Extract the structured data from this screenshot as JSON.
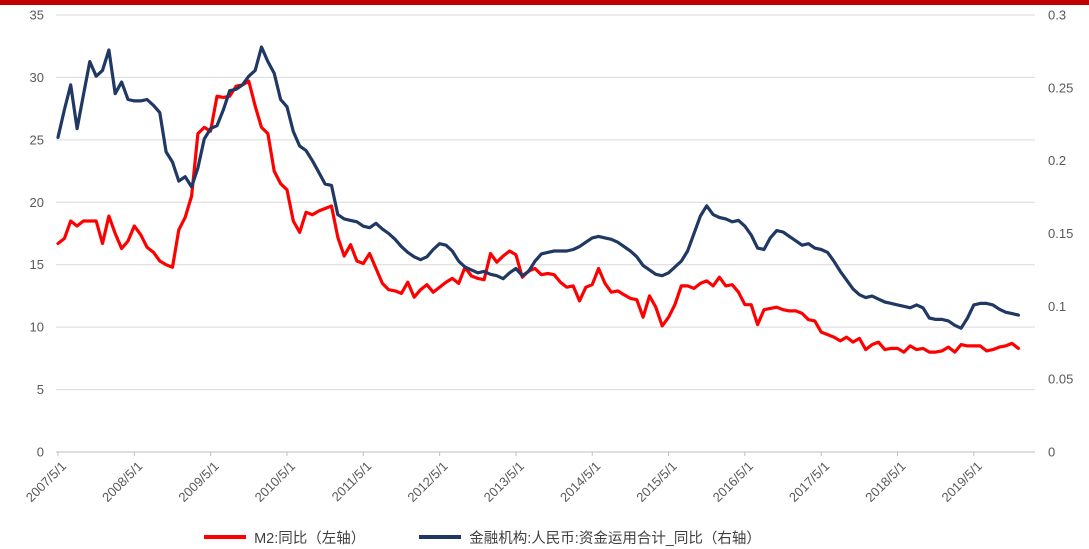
{
  "page": {
    "top_bar_color": "#C00000",
    "background_color": "#FFFFFF"
  },
  "chart_data": {
    "type": "line",
    "x_frequency": "monthly",
    "x_start": "2007/5",
    "x_end": "2019/12",
    "x_months": [
      "2007/5",
      "2007/6",
      "2007/7",
      "2007/8",
      "2007/9",
      "2007/10",
      "2007/11",
      "2007/12",
      "2008/1",
      "2008/2",
      "2008/3",
      "2008/4",
      "2008/5",
      "2008/6",
      "2008/7",
      "2008/8",
      "2008/9",
      "2008/10",
      "2008/11",
      "2008/12",
      "2009/1",
      "2009/2",
      "2009/3",
      "2009/4",
      "2009/5",
      "2009/6",
      "2009/7",
      "2009/8",
      "2009/9",
      "2009/10",
      "2009/11",
      "2009/12",
      "2010/1",
      "2010/2",
      "2010/3",
      "2010/4",
      "2010/5",
      "2010/6",
      "2010/7",
      "2010/8",
      "2010/9",
      "2010/10",
      "2010/11",
      "2010/12",
      "2011/1",
      "2011/2",
      "2011/3",
      "2011/4",
      "2011/5",
      "2011/6",
      "2011/7",
      "2011/8",
      "2011/9",
      "2011/10",
      "2011/11",
      "2011/12",
      "2012/1",
      "2012/2",
      "2012/3",
      "2012/4",
      "2012/5",
      "2012/6",
      "2012/7",
      "2012/8",
      "2012/9",
      "2012/10",
      "2012/11",
      "2012/12",
      "2013/1",
      "2013/2",
      "2013/3",
      "2013/4",
      "2013/5",
      "2013/6",
      "2013/7",
      "2013/8",
      "2013/9",
      "2013/10",
      "2013/11",
      "2013/12",
      "2014/1",
      "2014/2",
      "2014/3",
      "2014/4",
      "2014/5",
      "2014/6",
      "2014/7",
      "2014/8",
      "2014/9",
      "2014/10",
      "2014/11",
      "2014/12",
      "2015/1",
      "2015/2",
      "2015/3",
      "2015/4",
      "2015/5",
      "2015/6",
      "2015/7",
      "2015/8",
      "2015/9",
      "2015/10",
      "2015/11",
      "2015/12",
      "2016/1",
      "2016/2",
      "2016/3",
      "2016/4",
      "2016/5",
      "2016/6",
      "2016/7",
      "2016/8",
      "2016/9",
      "2016/10",
      "2016/11",
      "2016/12",
      "2017/1",
      "2017/2",
      "2017/3",
      "2017/4",
      "2017/5",
      "2017/6",
      "2017/7",
      "2017/8",
      "2017/9",
      "2017/10",
      "2017/11",
      "2017/12",
      "2018/1",
      "2018/2",
      "2018/3",
      "2018/4",
      "2018/5",
      "2018/6",
      "2018/7",
      "2018/8",
      "2018/9",
      "2018/10",
      "2018/11",
      "2018/12",
      "2019/1",
      "2019/2",
      "2019/3",
      "2019/4",
      "2019/5",
      "2019/6",
      "2019/7",
      "2019/8",
      "2019/9",
      "2019/10",
      "2019/11",
      "2019/12"
    ],
    "x_tick_labels": [
      "2007/5/1",
      "2008/5/1",
      "2009/5/1",
      "2010/5/1",
      "2011/5/1",
      "2012/5/1",
      "2013/5/1",
      "2014/5/1",
      "2015/5/1",
      "2016/5/1",
      "2017/5/1",
      "2018/5/1",
      "2019/5/1"
    ],
    "series": [
      {
        "name": "M2:同比（左轴）",
        "axis": "left",
        "color": "#FF0000",
        "values": [
          16.7,
          17.1,
          18.5,
          18.1,
          18.5,
          18.5,
          18.5,
          16.7,
          18.9,
          17.5,
          16.3,
          16.9,
          18.1,
          17.4,
          16.4,
          16.0,
          15.3,
          15.0,
          14.8,
          17.8,
          18.8,
          20.5,
          25.5,
          26.0,
          25.7,
          28.5,
          28.4,
          28.5,
          29.3,
          29.4,
          29.7,
          27.7,
          26.0,
          25.5,
          22.5,
          21.5,
          21.0,
          18.5,
          17.6,
          19.2,
          19.0,
          19.3,
          19.5,
          19.7,
          17.2,
          15.7,
          16.6,
          15.3,
          15.1,
          15.9,
          14.7,
          13.5,
          13.0,
          12.9,
          12.7,
          13.6,
          12.4,
          13.0,
          13.4,
          12.8,
          13.2,
          13.6,
          13.9,
          13.5,
          14.8,
          14.1,
          13.9,
          13.8,
          15.9,
          15.2,
          15.7,
          16.1,
          15.8,
          14.0,
          14.5,
          14.7,
          14.2,
          14.3,
          14.2,
          13.6,
          13.2,
          13.3,
          12.1,
          13.2,
          13.4,
          14.7,
          13.5,
          12.8,
          12.9,
          12.6,
          12.3,
          12.2,
          10.8,
          12.5,
          11.6,
          10.1,
          10.8,
          11.8,
          13.3,
          13.3,
          13.1,
          13.5,
          13.7,
          13.3,
          14.0,
          13.3,
          13.4,
          12.8,
          11.8,
          11.8,
          10.2,
          11.4,
          11.5,
          11.6,
          11.4,
          11.3,
          11.3,
          11.1,
          10.6,
          10.5,
          9.6,
          9.4,
          9.2,
          8.9,
          9.2,
          8.8,
          9.1,
          8.2,
          8.6,
          8.8,
          8.2,
          8.3,
          8.3,
          8.0,
          8.5,
          8.2,
          8.3,
          8.0,
          8.0,
          8.1,
          8.4,
          8.0,
          8.6,
          8.5,
          8.5,
          8.5,
          8.1,
          8.2,
          8.4,
          8.5,
          8.7,
          8.3
        ]
      },
      {
        "name": "金融机构:人民币:资金运用合计_同比（右轴）",
        "axis": "right",
        "color": "#1F3864",
        "values": [
          0.216,
          0.235,
          0.252,
          0.222,
          0.245,
          0.268,
          0.258,
          0.262,
          0.276,
          0.246,
          0.254,
          0.242,
          0.241,
          0.241,
          0.242,
          0.238,
          0.233,
          0.206,
          0.199,
          0.186,
          0.189,
          0.182,
          0.195,
          0.215,
          0.222,
          0.224,
          0.235,
          0.248,
          0.249,
          0.252,
          0.258,
          0.262,
          0.278,
          0.268,
          0.26,
          0.242,
          0.237,
          0.22,
          0.21,
          0.207,
          0.2,
          0.192,
          0.184,
          0.183,
          0.163,
          0.16,
          0.159,
          0.158,
          0.155,
          0.154,
          0.157,
          0.153,
          0.15,
          0.146,
          0.141,
          0.137,
          0.134,
          0.132,
          0.134,
          0.139,
          0.143,
          0.142,
          0.138,
          0.131,
          0.127,
          0.125,
          0.123,
          0.124,
          0.122,
          0.121,
          0.119,
          0.123,
          0.126,
          0.121,
          0.124,
          0.131,
          0.136,
          0.137,
          0.138,
          0.138,
          0.138,
          0.139,
          0.141,
          0.144,
          0.147,
          0.148,
          0.147,
          0.146,
          0.144,
          0.141,
          0.138,
          0.134,
          0.128,
          0.125,
          0.122,
          0.121,
          0.123,
          0.127,
          0.131,
          0.138,
          0.15,
          0.162,
          0.169,
          0.163,
          0.161,
          0.16,
          0.158,
          0.159,
          0.155,
          0.149,
          0.14,
          0.139,
          0.147,
          0.152,
          0.151,
          0.148,
          0.145,
          0.142,
          0.143,
          0.14,
          0.139,
          0.137,
          0.131,
          0.124,
          0.118,
          0.112,
          0.108,
          0.106,
          0.107,
          0.105,
          0.103,
          0.102,
          0.101,
          0.1,
          0.099,
          0.101,
          0.099,
          0.092,
          0.091,
          0.091,
          0.09,
          0.087,
          0.085,
          0.092,
          0.101,
          0.102,
          0.102,
          0.101,
          0.098,
          0.096,
          0.095,
          0.094
        ]
      }
    ],
    "left_axis": {
      "min": 0,
      "max": 35,
      "ticks": [
        "35",
        "30",
        "25",
        "20",
        "15",
        "10",
        "5",
        "0"
      ]
    },
    "right_axis": {
      "min": 0,
      "max": 0.3,
      "ticks": [
        "0.3",
        "0.25",
        "0.2",
        "0.15",
        "0.1",
        "0.05",
        "0"
      ]
    },
    "grid": true,
    "gridline_color": "#D9D9D9",
    "axis_line_color": "#BFBFBF",
    "axis_text_color": "#595959",
    "legend_position": "bottom"
  }
}
